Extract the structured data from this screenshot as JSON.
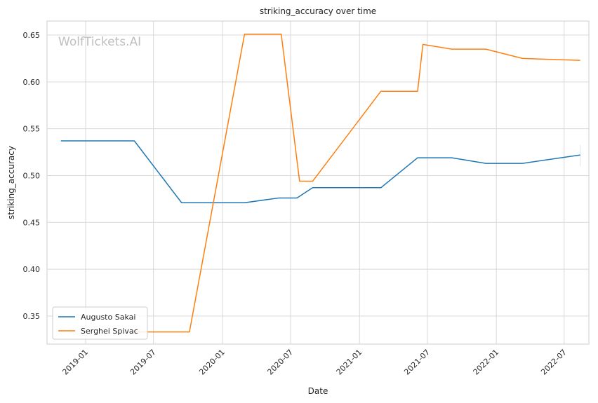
{
  "chart_data": {
    "type": "line",
    "title": "striking_accuracy over time",
    "xlabel": "Date",
    "ylabel": "striking_accuracy",
    "watermark": "WolfTickets.AI",
    "grid": true,
    "legend_position": "lower-left",
    "xlim": [
      "2018-09-20",
      "2022-09-05"
    ],
    "ylim": [
      0.32,
      0.665
    ],
    "x_ticks": [
      "2019-01",
      "2019-07",
      "2020-01",
      "2020-07",
      "2021-01",
      "2021-07",
      "2022-01",
      "2022-07"
    ],
    "y_ticks": [
      "0.35",
      "0.40",
      "0.45",
      "0.50",
      "0.55",
      "0.60",
      "0.65"
    ],
    "series": [
      {
        "name": "Augusto Sakai",
        "color": "#1f77b4",
        "points": [
          {
            "x": "2018-10-27",
            "y": 0.537
          },
          {
            "x": "2019-05-11",
            "y": 0.537
          },
          {
            "x": "2019-09-14",
            "y": 0.471
          },
          {
            "x": "2020-02-29",
            "y": 0.471
          },
          {
            "x": "2020-05-30",
            "y": 0.476
          },
          {
            "x": "2020-07-18",
            "y": 0.476
          },
          {
            "x": "2020-08-29",
            "y": 0.487
          },
          {
            "x": "2021-02-27",
            "y": 0.487
          },
          {
            "x": "2021-06-05",
            "y": 0.519
          },
          {
            "x": "2021-09-04",
            "y": 0.519
          },
          {
            "x": "2021-12-04",
            "y": 0.513
          },
          {
            "x": "2022-03-12",
            "y": 0.513
          },
          {
            "x": "2022-08-13",
            "y": 0.522
          }
        ]
      },
      {
        "name": "Serghei Spivac",
        "color": "#ff7f0e",
        "points": [
          {
            "x": "2019-05-11",
            "y": 0.333
          },
          {
            "x": "2019-10-05",
            "y": 0.333
          },
          {
            "x": "2020-02-29",
            "y": 0.651
          },
          {
            "x": "2020-06-06",
            "y": 0.651
          },
          {
            "x": "2020-07-25",
            "y": 0.494
          },
          {
            "x": "2020-08-29",
            "y": 0.494
          },
          {
            "x": "2021-02-27",
            "y": 0.59
          },
          {
            "x": "2021-06-05",
            "y": 0.59
          },
          {
            "x": "2021-06-19",
            "y": 0.64
          },
          {
            "x": "2021-09-04",
            "y": 0.635
          },
          {
            "x": "2021-12-04",
            "y": 0.635
          },
          {
            "x": "2022-03-12",
            "y": 0.625
          },
          {
            "x": "2022-08-13",
            "y": 0.623
          }
        ]
      }
    ]
  }
}
